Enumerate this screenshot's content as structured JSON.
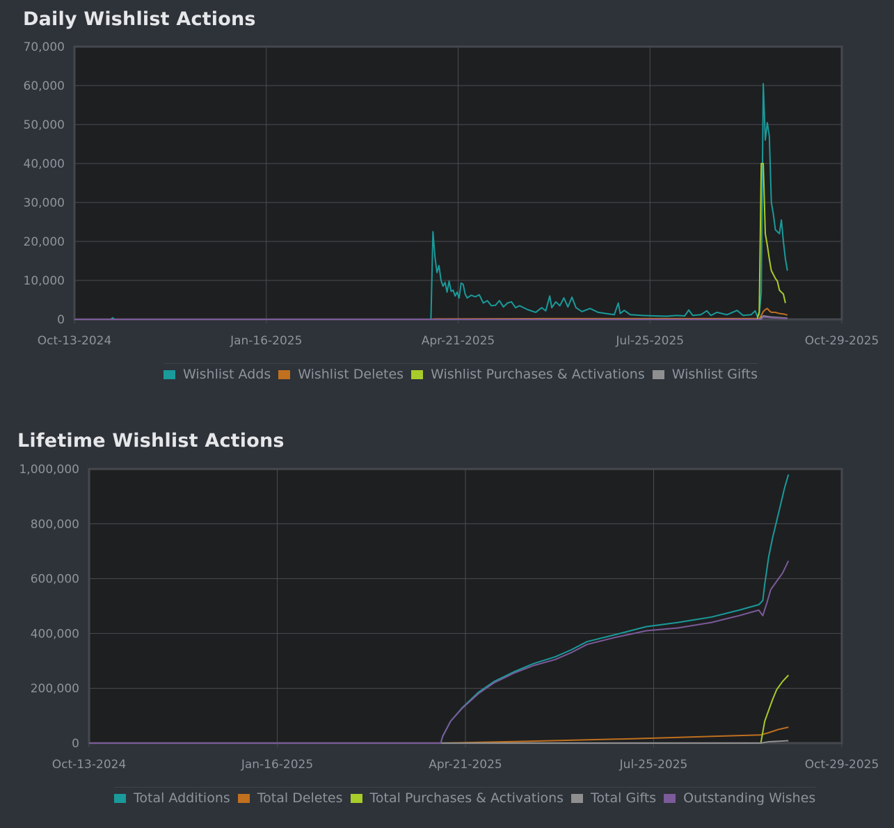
{
  "colors": {
    "background": "#2e3239",
    "plot_bg": "#1e1f21",
    "grid": "#4a4d52",
    "border": "#45484e",
    "tick_text": "#8e949b",
    "title_text": "#e6e7e9"
  },
  "chart_data": [
    {
      "type": "line",
      "title": "Daily Wishlist Actions",
      "xlabel": "",
      "ylabel": "",
      "x_axis": {
        "type": "date",
        "range": [
          "2024-10-13",
          "2025-10-29"
        ],
        "ticks": [
          "Oct-13-2024",
          "Jan-16-2025",
          "Apr-21-2025",
          "Jul-25-2025",
          "Oct-29-2025"
        ]
      },
      "y_axis": {
        "range": [
          0,
          70000
        ],
        "ticks": [
          0,
          10000,
          20000,
          30000,
          40000,
          50000,
          60000,
          70000
        ],
        "tick_labels": [
          "0",
          "10,000",
          "20,000",
          "30,000",
          "40,000",
          "50,000",
          "60,000",
          "70,000"
        ]
      },
      "grid": true,
      "legend_position": "bottom",
      "series": [
        {
          "name": "Wishlist Adds",
          "color": "#1a9a9a",
          "points": [
            [
              "2024-10-13",
              0
            ],
            [
              "2024-10-31",
              0
            ],
            [
              "2024-11-01",
              400
            ],
            [
              "2024-11-02",
              0
            ],
            [
              "2025-04-08",
              0
            ],
            [
              "2025-04-09",
              22500
            ],
            [
              "2025-04-10",
              16000
            ],
            [
              "2025-04-11",
              12000
            ],
            [
              "2025-04-12",
              13800
            ],
            [
              "2025-04-13",
              10000
            ],
            [
              "2025-04-14",
              8500
            ],
            [
              "2025-04-15",
              9500
            ],
            [
              "2025-04-16",
              7000
            ],
            [
              "2025-04-17",
              9800
            ],
            [
              "2025-04-18",
              7200
            ],
            [
              "2025-04-19",
              7500
            ],
            [
              "2025-04-20",
              6000
            ],
            [
              "2025-04-21",
              7000
            ],
            [
              "2025-04-22",
              5500
            ],
            [
              "2025-04-23",
              9300
            ],
            [
              "2025-04-24",
              9000
            ],
            [
              "2025-04-25",
              6500
            ],
            [
              "2025-04-26",
              5500
            ],
            [
              "2025-04-28",
              6200
            ],
            [
              "2025-04-30",
              5800
            ],
            [
              "2025-05-02",
              6300
            ],
            [
              "2025-05-04",
              4200
            ],
            [
              "2025-05-06",
              4800
            ],
            [
              "2025-05-08",
              3500
            ],
            [
              "2025-05-10",
              3600
            ],
            [
              "2025-05-12",
              4800
            ],
            [
              "2025-05-14",
              3200
            ],
            [
              "2025-05-16",
              4200
            ],
            [
              "2025-05-18",
              4500
            ],
            [
              "2025-05-20",
              3000
            ],
            [
              "2025-05-22",
              3500
            ],
            [
              "2025-05-26",
              2500
            ],
            [
              "2025-05-30",
              1800
            ],
            [
              "2025-06-02",
              3000
            ],
            [
              "2025-06-04",
              2200
            ],
            [
              "2025-06-06",
              6000
            ],
            [
              "2025-06-07",
              3000
            ],
            [
              "2025-06-09",
              4500
            ],
            [
              "2025-06-11",
              3500
            ],
            [
              "2025-06-13",
              5500
            ],
            [
              "2025-06-15",
              3200
            ],
            [
              "2025-06-17",
              5700
            ],
            [
              "2025-06-19",
              3000
            ],
            [
              "2025-06-22",
              2000
            ],
            [
              "2025-06-26",
              2800
            ],
            [
              "2025-06-30",
              1800
            ],
            [
              "2025-07-04",
              1500
            ],
            [
              "2025-07-08",
              1200
            ],
            [
              "2025-07-10",
              4200
            ],
            [
              "2025-07-11",
              1500
            ],
            [
              "2025-07-13",
              2300
            ],
            [
              "2025-07-16",
              1200
            ],
            [
              "2025-07-22",
              1000
            ],
            [
              "2025-07-28",
              900
            ],
            [
              "2025-08-03",
              800
            ],
            [
              "2025-08-08",
              1000
            ],
            [
              "2025-08-12",
              900
            ],
            [
              "2025-08-14",
              2400
            ],
            [
              "2025-08-16",
              1000
            ],
            [
              "2025-08-20",
              1200
            ],
            [
              "2025-08-23",
              2200
            ],
            [
              "2025-08-25",
              1000
            ],
            [
              "2025-08-28",
              1800
            ],
            [
              "2025-09-02",
              1200
            ],
            [
              "2025-09-07",
              2300
            ],
            [
              "2025-09-10",
              1000
            ],
            [
              "2025-09-14",
              1200
            ],
            [
              "2025-09-16",
              2200
            ],
            [
              "2025-09-17",
              800
            ],
            [
              "2025-09-18",
              1200
            ],
            [
              "2025-09-19",
              7000
            ],
            [
              "2025-09-20",
              60500
            ],
            [
              "2025-09-21",
              46000
            ],
            [
              "2025-09-22",
              50500
            ],
            [
              "2025-09-23",
              47000
            ],
            [
              "2025-09-24",
              30000
            ],
            [
              "2025-09-25",
              27000
            ],
            [
              "2025-09-26",
              23000
            ],
            [
              "2025-09-27",
              22500
            ],
            [
              "2025-09-28",
              22000
            ],
            [
              "2025-09-29",
              25500
            ],
            [
              "2025-09-30",
              20000
            ],
            [
              "2025-10-01",
              15500
            ],
            [
              "2025-10-02",
              12500
            ]
          ]
        },
        {
          "name": "Wishlist Deletes",
          "color": "#c0701e",
          "points": [
            [
              "2024-10-13",
              0
            ],
            [
              "2025-04-08",
              0
            ],
            [
              "2025-04-10",
              100
            ],
            [
              "2025-06-01",
              200
            ],
            [
              "2025-09-18",
              200
            ],
            [
              "2025-09-19",
              1000
            ],
            [
              "2025-09-20",
              2000
            ],
            [
              "2025-09-21",
              2500
            ],
            [
              "2025-09-22",
              2800
            ],
            [
              "2025-09-23",
              2200
            ],
            [
              "2025-09-24",
              1800
            ],
            [
              "2025-09-26",
              1800
            ],
            [
              "2025-09-28",
              1500
            ],
            [
              "2025-09-30",
              1400
            ],
            [
              "2025-10-02",
              1100
            ]
          ]
        },
        {
          "name": "Wishlist Purchases & Activations",
          "color": "#a8cc2a",
          "points": [
            [
              "2024-10-13",
              0
            ],
            [
              "2025-09-17",
              0
            ],
            [
              "2025-09-18",
              2000
            ],
            [
              "2025-09-19",
              40000
            ],
            [
              "2025-09-20",
              40000
            ],
            [
              "2025-09-21",
              22000
            ],
            [
              "2025-09-22",
              19000
            ],
            [
              "2025-09-23",
              15500
            ],
            [
              "2025-09-24",
              12500
            ],
            [
              "2025-09-25",
              11500
            ],
            [
              "2025-09-26",
              10500
            ],
            [
              "2025-09-27",
              9800
            ],
            [
              "2025-09-28",
              7500
            ],
            [
              "2025-09-29",
              7000
            ],
            [
              "2025-09-30",
              6500
            ],
            [
              "2025-10-01",
              4200
            ]
          ]
        },
        {
          "name": "Wishlist Gifts",
          "color": "#8f8f8f",
          "points": [
            [
              "2024-10-13",
              0
            ],
            [
              "2025-09-18",
              0
            ],
            [
              "2025-09-19",
              500
            ],
            [
              "2025-09-20",
              900
            ],
            [
              "2025-09-24",
              600
            ],
            [
              "2025-10-02",
              300
            ]
          ]
        },
        {
          "name": "",
          "color": "#7b5b9a",
          "points": [
            [
              "2024-10-13",
              0
            ],
            [
              "2025-09-19",
              0
            ],
            [
              "2025-09-20",
              600
            ],
            [
              "2025-09-25",
              400
            ],
            [
              "2025-10-02",
              200
            ]
          ]
        }
      ]
    },
    {
      "type": "line",
      "title": "Lifetime Wishlist Actions",
      "xlabel": "",
      "ylabel": "",
      "x_axis": {
        "type": "date",
        "range": [
          "2024-10-13",
          "2025-10-29"
        ],
        "ticks": [
          "Oct-13-2024",
          "Jan-16-2025",
          "Apr-21-2025",
          "Jul-25-2025",
          "Oct-29-2025"
        ]
      },
      "y_axis": {
        "range": [
          0,
          1000000
        ],
        "ticks": [
          0,
          200000,
          400000,
          600000,
          800000,
          1000000
        ],
        "tick_labels": [
          "0",
          "200,000",
          "400,000",
          "600,000",
          "800,000",
          "1,000,000"
        ]
      },
      "grid": true,
      "legend_position": "bottom",
      "series": [
        {
          "name": "Total Additions",
          "color": "#1a9a9a",
          "points": [
            [
              "2024-10-13",
              0
            ],
            [
              "2025-04-09",
              0
            ],
            [
              "2025-04-10",
              25000
            ],
            [
              "2025-04-14",
              80000
            ],
            [
              "2025-04-20",
              130000
            ],
            [
              "2025-04-28",
              185000
            ],
            [
              "2025-05-06",
              225000
            ],
            [
              "2025-05-16",
              260000
            ],
            [
              "2025-05-26",
              290000
            ],
            [
              "2025-06-06",
              315000
            ],
            [
              "2025-06-14",
              340000
            ],
            [
              "2025-06-22",
              370000
            ],
            [
              "2025-07-06",
              395000
            ],
            [
              "2025-07-22",
              425000
            ],
            [
              "2025-08-07",
              440000
            ],
            [
              "2025-08-24",
              460000
            ],
            [
              "2025-09-07",
              485000
            ],
            [
              "2025-09-17",
              505000
            ],
            [
              "2025-09-19",
              520000
            ],
            [
              "2025-09-20",
              580000
            ],
            [
              "2025-09-22",
              680000
            ],
            [
              "2025-09-24",
              750000
            ],
            [
              "2025-09-26",
              810000
            ],
            [
              "2025-09-28",
              870000
            ],
            [
              "2025-09-30",
              930000
            ],
            [
              "2025-10-02",
              980000
            ]
          ]
        },
        {
          "name": "Total Deletes",
          "color": "#c0701e",
          "points": [
            [
              "2024-10-13",
              0
            ],
            [
              "2025-04-09",
              0
            ],
            [
              "2025-06-01",
              8000
            ],
            [
              "2025-07-15",
              16000
            ],
            [
              "2025-09-18",
              30000
            ],
            [
              "2025-09-22",
              38000
            ],
            [
              "2025-09-27",
              50000
            ],
            [
              "2025-10-02",
              58000
            ]
          ]
        },
        {
          "name": "Total Purchases & Activations",
          "color": "#a8cc2a",
          "points": [
            [
              "2024-10-13",
              0
            ],
            [
              "2025-09-18",
              0
            ],
            [
              "2025-09-19",
              40000
            ],
            [
              "2025-09-20",
              80000
            ],
            [
              "2025-09-22",
              120000
            ],
            [
              "2025-09-24",
              160000
            ],
            [
              "2025-09-26",
              195000
            ],
            [
              "2025-09-29",
              225000
            ],
            [
              "2025-10-02",
              248000
            ]
          ]
        },
        {
          "name": "Total Gifts",
          "color": "#8f8f8f",
          "points": [
            [
              "2024-10-13",
              0
            ],
            [
              "2025-09-18",
              0
            ],
            [
              "2025-09-22",
              5000
            ],
            [
              "2025-10-02",
              9000
            ]
          ]
        },
        {
          "name": "Outstanding Wishes",
          "color": "#7b5b9a",
          "points": [
            [
              "2024-10-13",
              0
            ],
            [
              "2025-04-09",
              0
            ],
            [
              "2025-04-10",
              25000
            ],
            [
              "2025-04-14",
              80000
            ],
            [
              "2025-04-20",
              128000
            ],
            [
              "2025-04-28",
              180000
            ],
            [
              "2025-05-06",
              220000
            ],
            [
              "2025-05-16",
              255000
            ],
            [
              "2025-05-26",
              283000
            ],
            [
              "2025-06-06",
              305000
            ],
            [
              "2025-06-14",
              330000
            ],
            [
              "2025-06-22",
              360000
            ],
            [
              "2025-07-06",
              385000
            ],
            [
              "2025-07-22",
              410000
            ],
            [
              "2025-08-07",
              420000
            ],
            [
              "2025-08-24",
              440000
            ],
            [
              "2025-09-07",
              465000
            ],
            [
              "2025-09-17",
              485000
            ],
            [
              "2025-09-19",
              465000
            ],
            [
              "2025-09-21",
              510000
            ],
            [
              "2025-09-23",
              560000
            ],
            [
              "2025-09-26",
              590000
            ],
            [
              "2025-09-29",
              620000
            ],
            [
              "2025-10-02",
              665000
            ]
          ]
        }
      ]
    }
  ]
}
